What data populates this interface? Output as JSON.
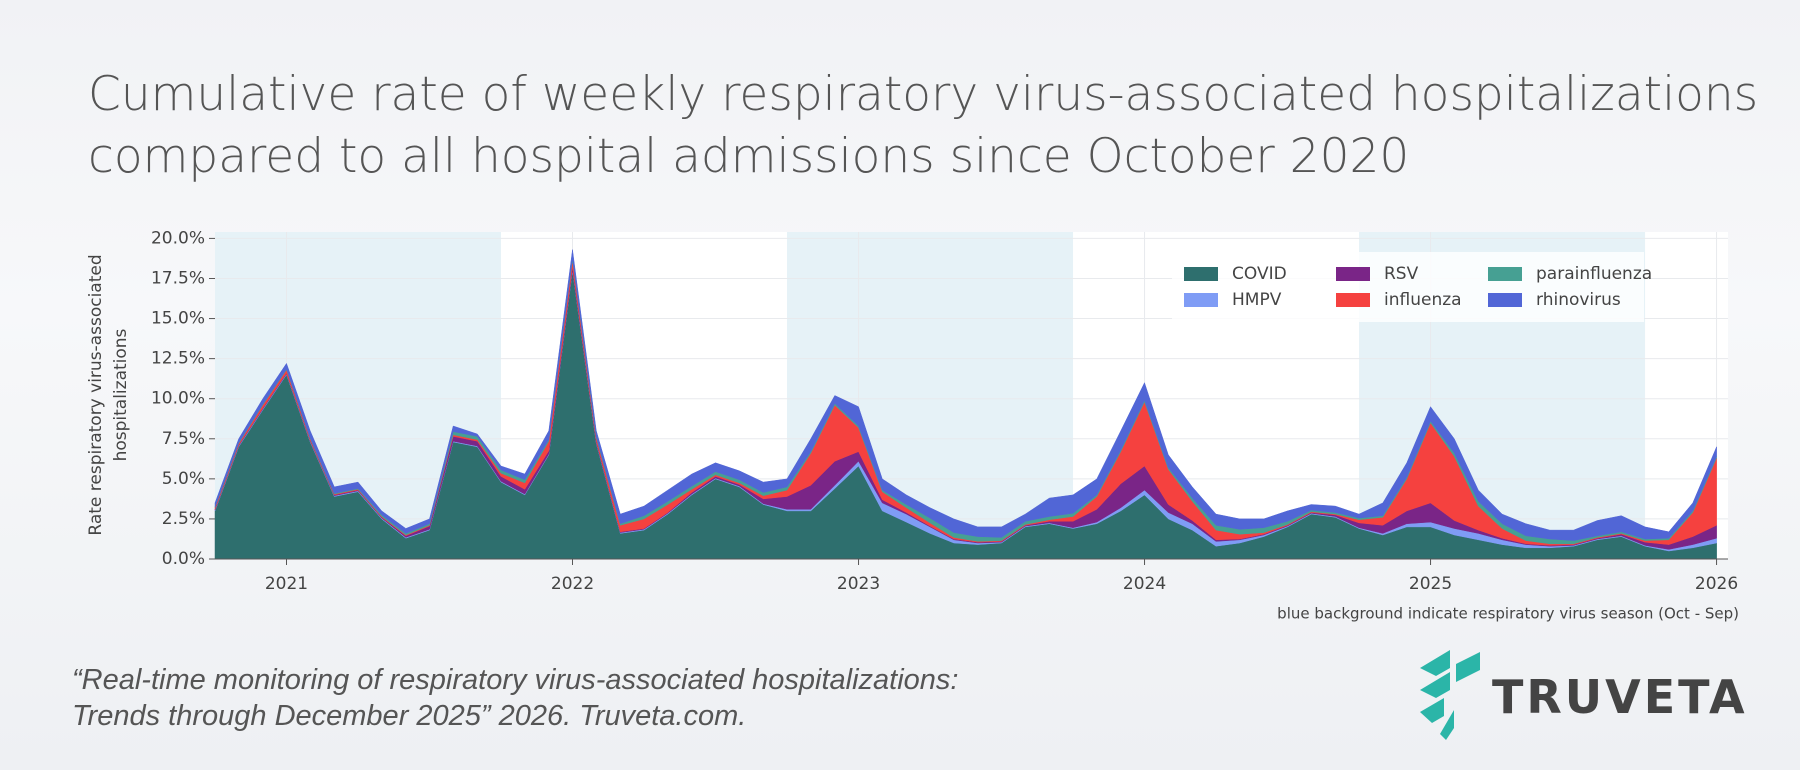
{
  "chart_data": {
    "type": "stacked_area",
    "title": [
      "Cumulative rate of weekly respiratory virus-associated hospitalizations",
      "compared to all hospital admissions since October 2020"
    ],
    "ylabel": [
      "Rate respiratory virus-associated",
      "hospitalizations"
    ],
    "note": "blue background indicate respiratory virus season (Oct - Sep)",
    "citation": [
      "“Real-time monitoring of respiratory virus-associated hospitalizations:",
      "Trends through December 2025” 2026. Truveta.com."
    ],
    "logo_text": "TRUVETA",
    "legend": "upper right",
    "grid": true,
    "season_color": "#e6f2f7",
    "seasons": [
      {
        "start": 2020.75,
        "end": 2021.75
      },
      {
        "start": 2022.75,
        "end": 2023.75
      },
      {
        "start": 2024.75,
        "end": 2025.75
      }
    ],
    "xlim": [
      2020.75,
      2026.04
    ],
    "xticks": [
      2021,
      2022,
      2023,
      2024,
      2025,
      2026
    ],
    "ylim": [
      0,
      20.4
    ],
    "yticks": [
      {
        "value": 0,
        "label": "0.0%"
      },
      {
        "value": 2.5,
        "label": "2.5%"
      },
      {
        "value": 5,
        "label": "5.0%"
      },
      {
        "value": 7.5,
        "label": "7.5%"
      },
      {
        "value": 10,
        "label": "10.0%"
      },
      {
        "value": 12.5,
        "label": "12.5%"
      },
      {
        "value": 15,
        "label": "15.0%"
      },
      {
        "value": 17.5,
        "label": "17.5%"
      },
      {
        "value": 20,
        "label": "20.0%"
      }
    ],
    "x": [
      2020.75,
      2020.833,
      2020.917,
      2021,
      2021.083,
      2021.167,
      2021.25,
      2021.333,
      2021.417,
      2021.5,
      2021.583,
      2021.667,
      2021.75,
      2021.833,
      2021.917,
      2022,
      2022.083,
      2022.167,
      2022.25,
      2022.333,
      2022.417,
      2022.5,
      2022.583,
      2022.667,
      2022.75,
      2022.833,
      2022.917,
      2023,
      2023.083,
      2023.167,
      2023.25,
      2023.333,
      2023.417,
      2023.5,
      2023.583,
      2023.667,
      2023.75,
      2023.833,
      2023.917,
      2024,
      2024.083,
      2024.167,
      2024.25,
      2024.333,
      2024.417,
      2024.5,
      2024.583,
      2024.667,
      2024.75,
      2024.833,
      2024.917,
      2025,
      2025.083,
      2025.167,
      2025.25,
      2025.333,
      2025.417,
      2025.5,
      2025.583,
      2025.667,
      2025.75,
      2025.833,
      2025.917,
      2026
    ],
    "series": [
      {
        "name": "COVID",
        "color": "#2e6f6e",
        "values": [
          3.0,
          7.0,
          9.3,
          11.5,
          7.3,
          3.9,
          4.2,
          2.5,
          1.3,
          1.8,
          7.3,
          7.0,
          4.8,
          4.0,
          6.5,
          18.0,
          7.2,
          1.6,
          1.8,
          2.8,
          4.0,
          5.0,
          4.5,
          3.4,
          3.0,
          3.0,
          4.4,
          5.8,
          3.0,
          2.3,
          1.6,
          1.0,
          0.9,
          1.0,
          2.0,
          2.2,
          1.9,
          2.2,
          3.0,
          4.0,
          2.5,
          1.8,
          0.8,
          1.0,
          1.4,
          2.0,
          2.8,
          2.6,
          1.9,
          1.5,
          2.0,
          2.0,
          1.5,
          1.2,
          0.9,
          0.7,
          0.7,
          0.8,
          1.2,
          1.4,
          0.8,
          0.5,
          0.7,
          1.0
        ]
      },
      {
        "name": "HMPV",
        "color": "#7f9cf5",
        "values": [
          0.05,
          0.05,
          0.05,
          0.05,
          0.05,
          0.05,
          0.05,
          0.05,
          0.05,
          0.05,
          0.05,
          0.05,
          0.05,
          0.05,
          0.05,
          0.05,
          0.05,
          0.05,
          0.05,
          0.05,
          0.05,
          0.05,
          0.05,
          0.05,
          0.1,
          0.1,
          0.2,
          0.3,
          0.5,
          0.5,
          0.4,
          0.2,
          0.1,
          0.05,
          0.05,
          0.05,
          0.05,
          0.1,
          0.2,
          0.3,
          0.4,
          0.4,
          0.3,
          0.2,
          0.1,
          0.05,
          0.05,
          0.05,
          0.05,
          0.1,
          0.2,
          0.3,
          0.4,
          0.4,
          0.3,
          0.2,
          0.1,
          0.05,
          0.05,
          0.05,
          0.05,
          0.1,
          0.2,
          0.3
        ]
      },
      {
        "name": "RSV",
        "color": "#7a2587",
        "values": [
          0.05,
          0.05,
          0.05,
          0.05,
          0.05,
          0.05,
          0.05,
          0.05,
          0.1,
          0.2,
          0.3,
          0.3,
          0.3,
          0.3,
          0.2,
          0.2,
          0.1,
          0.05,
          0.05,
          0.05,
          0.1,
          0.1,
          0.1,
          0.3,
          0.8,
          1.5,
          1.5,
          0.6,
          0.2,
          0.1,
          0.05,
          0.05,
          0.05,
          0.05,
          0.05,
          0.1,
          0.4,
          0.8,
          1.5,
          1.5,
          0.5,
          0.2,
          0.1,
          0.05,
          0.05,
          0.05,
          0.05,
          0.1,
          0.3,
          0.5,
          0.8,
          1.2,
          0.5,
          0.2,
          0.1,
          0.05,
          0.05,
          0.05,
          0.05,
          0.1,
          0.2,
          0.3,
          0.5,
          0.8
        ]
      },
      {
        "name": "influenza",
        "color": "#f5413f",
        "values": [
          0.1,
          0.1,
          0.2,
          0.2,
          0.1,
          0.05,
          0.05,
          0.05,
          0.05,
          0.05,
          0.1,
          0.1,
          0.2,
          0.4,
          0.6,
          0.4,
          0.2,
          0.4,
          0.6,
          0.5,
          0.2,
          0.1,
          0.1,
          0.2,
          0.4,
          2.0,
          3.5,
          1.5,
          0.5,
          0.3,
          0.2,
          0.1,
          0.05,
          0.05,
          0.05,
          0.1,
          0.3,
          0.8,
          2.0,
          4.0,
          2.2,
          1.2,
          0.6,
          0.3,
          0.1,
          0.05,
          0.05,
          0.05,
          0.2,
          0.5,
          2.0,
          5.0,
          4.0,
          1.5,
          0.6,
          0.2,
          0.1,
          0.05,
          0.05,
          0.05,
          0.1,
          0.3,
          1.5,
          4.2
        ]
      },
      {
        "name": "parainfluenza",
        "color": "#46a093",
        "values": [
          0.05,
          0.05,
          0.05,
          0.05,
          0.05,
          0.05,
          0.05,
          0.1,
          0.1,
          0.1,
          0.2,
          0.2,
          0.2,
          0.2,
          0.1,
          0.1,
          0.1,
          0.1,
          0.2,
          0.2,
          0.2,
          0.2,
          0.2,
          0.2,
          0.2,
          0.1,
          0.1,
          0.1,
          0.1,
          0.2,
          0.3,
          0.3,
          0.3,
          0.2,
          0.2,
          0.2,
          0.2,
          0.1,
          0.1,
          0.1,
          0.1,
          0.2,
          0.3,
          0.3,
          0.3,
          0.2,
          0.1,
          0.1,
          0.1,
          0.1,
          0.1,
          0.1,
          0.2,
          0.3,
          0.3,
          0.3,
          0.3,
          0.2,
          0.1,
          0.1,
          0.1,
          0.1,
          0.1,
          0.1
        ]
      },
      {
        "name": "rhinovirus",
        "color": "#5166d6",
        "values": [
          0.25,
          0.25,
          0.35,
          0.35,
          0.45,
          0.4,
          0.4,
          0.25,
          0.3,
          0.3,
          0.35,
          0.15,
          0.25,
          0.35,
          0.55,
          0.55,
          0.35,
          0.6,
          0.6,
          0.7,
          0.75,
          0.55,
          0.55,
          0.65,
          0.5,
          0.8,
          0.5,
          1.2,
          0.7,
          0.6,
          0.65,
          0.85,
          0.6,
          0.65,
          0.45,
          1.15,
          1.15,
          1.0,
          1.2,
          1.1,
          0.8,
          0.7,
          0.7,
          0.65,
          0.55,
          0.65,
          0.35,
          0.4,
          0.25,
          0.8,
          0.9,
          0.9,
          0.9,
          0.7,
          0.6,
          0.75,
          0.55,
          0.65,
          0.95,
          1.0,
          0.75,
          0.4,
          0.5,
          0.6
        ]
      }
    ]
  }
}
